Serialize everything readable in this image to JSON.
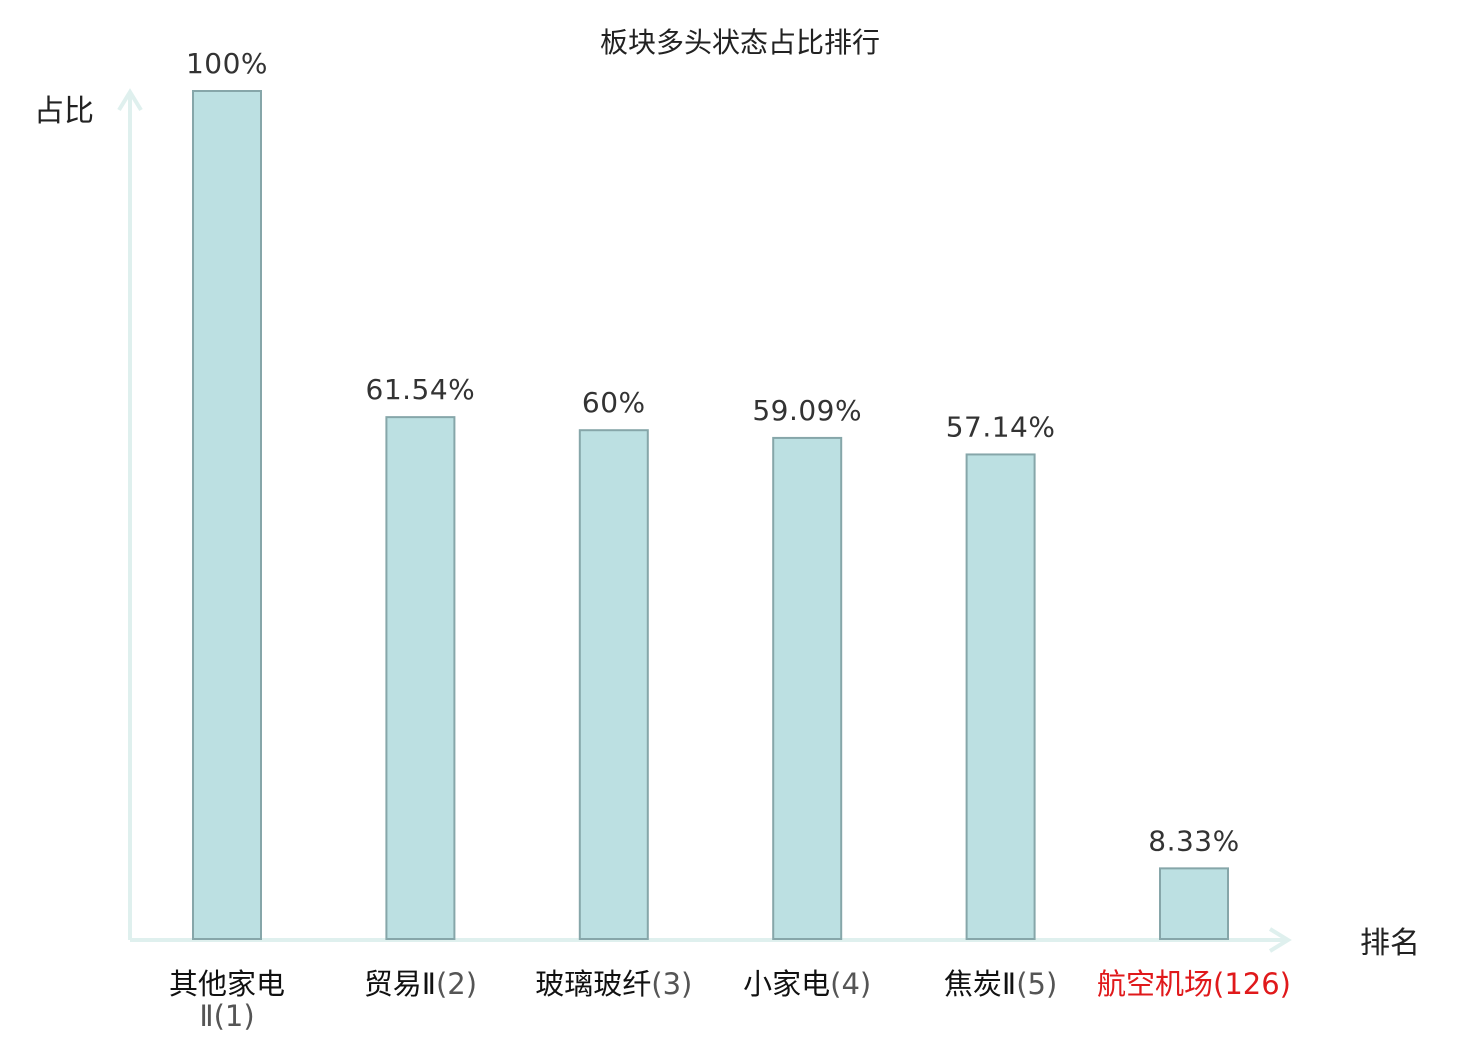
{
  "chart_data": {
    "type": "bar",
    "title": "板块多头状态占比排行",
    "ylabel": "占比",
    "xlabel": "排名",
    "ylim": [
      0,
      100
    ],
    "grid": false,
    "categories": [
      {
        "name": "其他家电Ⅱ",
        "rank": "(1)",
        "highlight": false
      },
      {
        "name": "贸易Ⅱ",
        "rank": "(2)",
        "highlight": false
      },
      {
        "name": "玻璃玻纤",
        "rank": "(3)",
        "highlight": false
      },
      {
        "name": "小家电",
        "rank": "(4)",
        "highlight": false
      },
      {
        "name": "焦炭Ⅱ",
        "rank": "(5)",
        "highlight": false
      },
      {
        "name": "航空机场",
        "rank": "(126)",
        "highlight": true
      }
    ],
    "values": [
      100,
      61.54,
      60,
      59.09,
      57.14,
      8.33
    ],
    "value_labels": [
      "100%",
      "61.54%",
      "60%",
      "59.09%",
      "57.14%",
      "8.33%"
    ]
  },
  "colors": {
    "bar_fill": "#bce0e2",
    "bar_stroke": "#86a6a9",
    "axis": "#dff0ee",
    "category_text": "#111111",
    "rank_text": "#555555",
    "highlight_text": "#e0191b"
  }
}
